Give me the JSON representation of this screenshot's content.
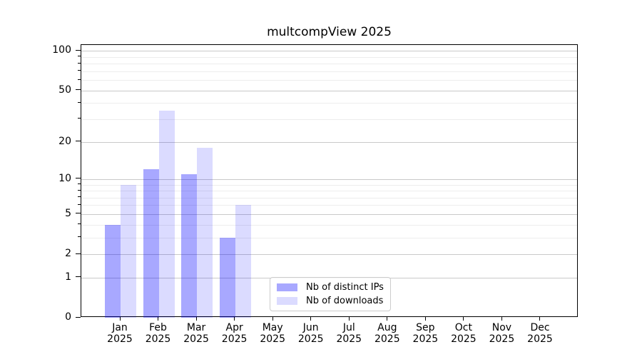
{
  "figure": {
    "title": "multcompView 2025"
  },
  "legend": {
    "items": [
      {
        "label": "Nb of distinct IPs",
        "color": "rgba(0,0,255,0.34)"
      },
      {
        "label": "Nb of downloads",
        "color": "rgba(0,0,255,0.14)"
      }
    ]
  },
  "chart_data": {
    "type": "bar",
    "title": "multcompView 2025",
    "categories": [
      "Jan",
      "Feb",
      "Mar",
      "Apr",
      "May",
      "Jun",
      "Jul",
      "Aug",
      "Sep",
      "Oct",
      "Nov",
      "Dec"
    ],
    "year_label": "2025",
    "series": [
      {
        "name": "Nb of distinct IPs",
        "color": "rgba(0,0,255,0.34)",
        "values": [
          4,
          12,
          11,
          3,
          0,
          0,
          0,
          0,
          0,
          0,
          0,
          0
        ]
      },
      {
        "name": "Nb of downloads",
        "color": "rgba(0,0,255,0.14)",
        "values": [
          9,
          35,
          18,
          6,
          0,
          0,
          0,
          0,
          0,
          0,
          0,
          0
        ]
      }
    ],
    "y_scale": "log1p",
    "y_major_ticks": [
      0,
      1,
      2,
      5,
      10,
      20,
      50,
      100
    ],
    "y_minor_ticks": [
      3,
      4,
      6,
      7,
      8,
      9,
      30,
      40,
      60,
      70,
      80,
      90
    ],
    "ylim": [
      0,
      111
    ],
    "xlabel": "",
    "ylabel": "",
    "grid": "on",
    "legend_position": "inside lower center"
  },
  "colors": {
    "grid_major": "#c9c9c9",
    "grid_minor": "#ededed",
    "axis": "#000000",
    "background": "#ffffff"
  }
}
